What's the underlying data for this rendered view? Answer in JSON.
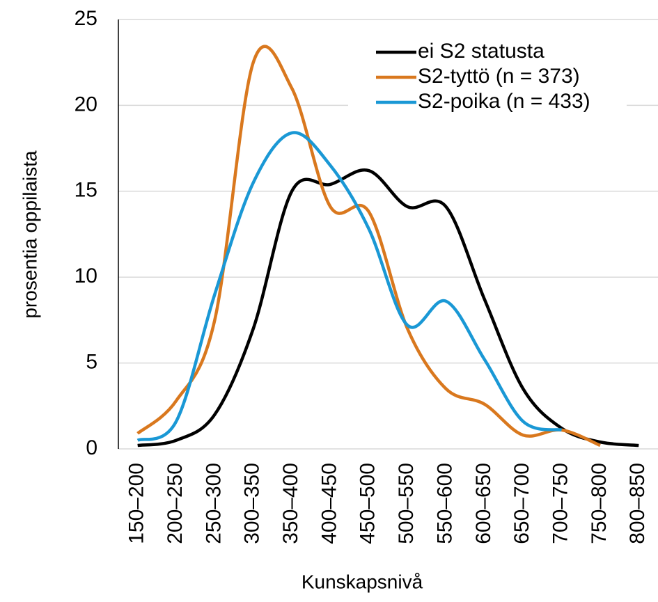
{
  "chart_data": {
    "type": "line",
    "x_label": "Kunskapsnivå",
    "y_label": "prosentia oppilaista",
    "categories": [
      "150–200",
      "200–250",
      "250–300",
      "300–350",
      "350–400",
      "400–450",
      "450–500",
      "500–550",
      "550–600",
      "600–650",
      "650–700",
      "700–750",
      "750–800",
      "800–850"
    ],
    "series": [
      {
        "name": "ei S2 statusta",
        "color": "#000000",
        "values": [
          0.2,
          0.5,
          2,
          7,
          15,
          15.4,
          16.2,
          14.1,
          14.1,
          8.7,
          3.5,
          1.2,
          0.4,
          0.2
        ]
      },
      {
        "name": "S2-tyttö (n = 373)",
        "color": "#d9781e",
        "values": [
          0.9,
          2.8,
          7.5,
          22.5,
          21,
          14.1,
          13.8,
          7,
          3.5,
          2.6,
          0.8,
          1.1,
          0.2,
          null
        ]
      },
      {
        "name": "S2-poika (n = 433)",
        "color": "#1a98d5",
        "values": [
          0.5,
          1.6,
          9,
          15.5,
          18.4,
          16.5,
          12.8,
          7.2,
          8.6,
          5.2,
          1.6,
          1.1,
          null,
          null
        ]
      }
    ],
    "ylim": [
      0,
      25
    ],
    "yticks": [
      0,
      5,
      10,
      15,
      20,
      25
    ],
    "grid": true,
    "legend": "upper right"
  }
}
